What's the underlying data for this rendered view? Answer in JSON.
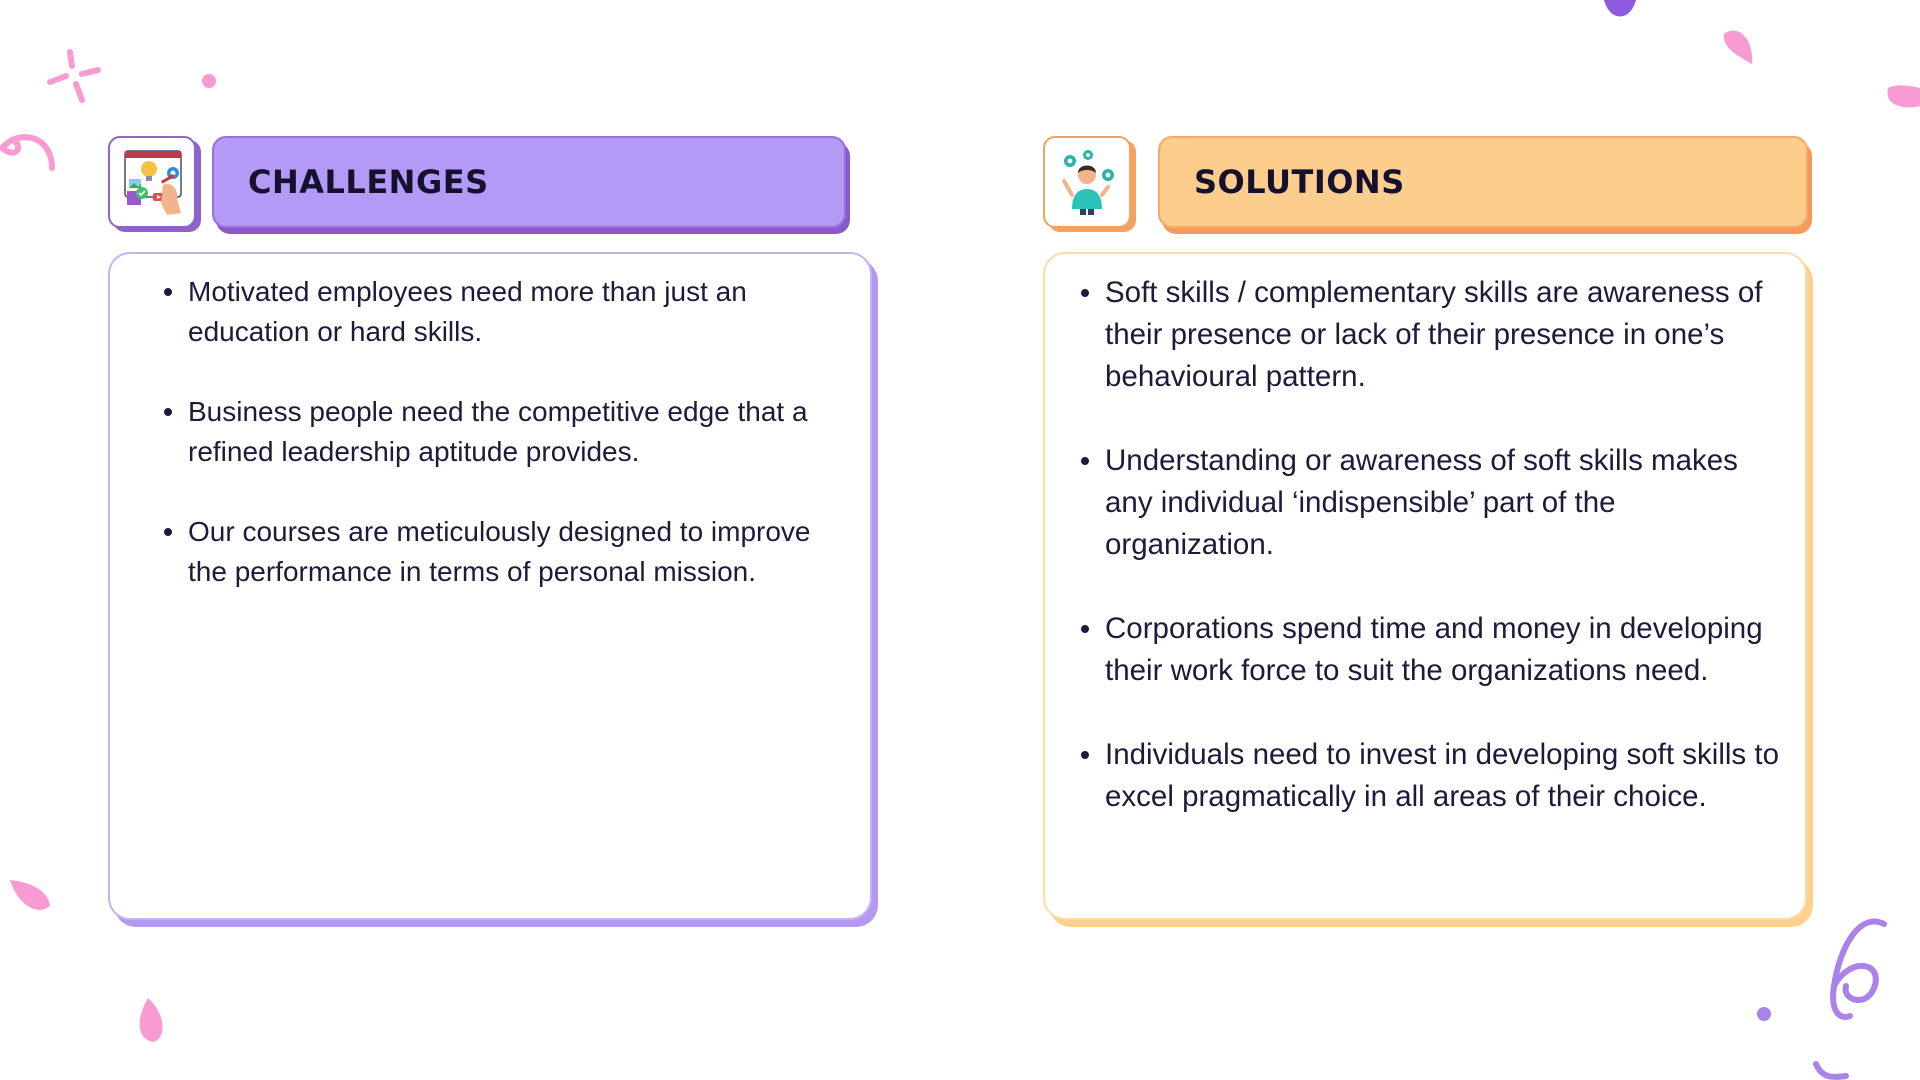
{
  "challenges": {
    "title": "CHALLENGES",
    "icon": "creative-board-icon",
    "accent": "#b39af7",
    "points": [
      "Motivated employees need more than just an education or hard skills.",
      "Business people need the competitive edge that a refined leadership aptitude provides.",
      "Our courses are meticulously designed to improve the performance in terms of personal mission."
    ]
  },
  "solutions": {
    "title": "SOLUTIONS",
    "icon": "person-gears-icon",
    "accent": "#fdcd8e",
    "points": [
      "Soft skills / complementary skills are awareness of their presence or lack of their presence in one’s behavioural pattern.",
      "Understanding or awareness of soft skills makes any individual ‘indispensible’ part of the organization.",
      "Corporations spend time and money in developing their work force to suit the organizations need.",
      "Individuals need to invest in developing soft skills to excel pragmatically in all areas of their choice."
    ]
  }
}
